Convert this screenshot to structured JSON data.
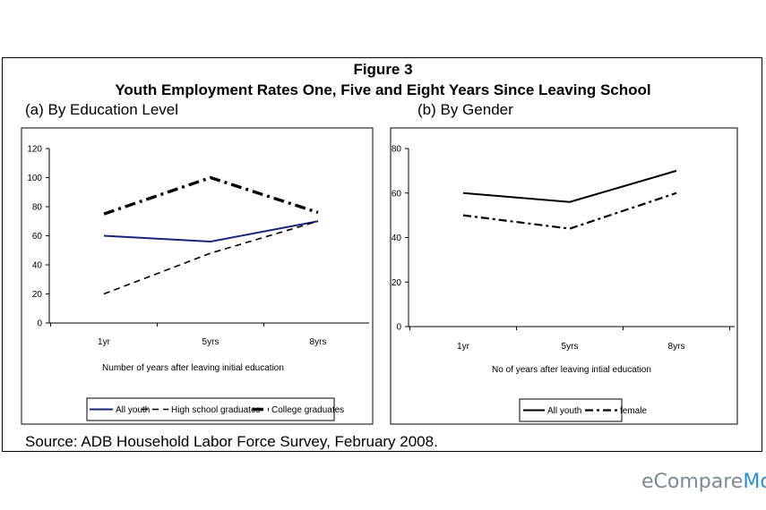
{
  "figure": {
    "title": "Figure 3",
    "subtitle": "Youth Employment Rates One, Five and Eight Years Since Leaving School",
    "source": "Source: ADB Household Labor Force Survey, February 2008."
  },
  "watermark": {
    "part1": "eCompare",
    "part2": "Mo"
  },
  "chart_data": [
    {
      "type": "line",
      "title": "(a) By Education Level",
      "categories": [
        "1yr",
        "5yrs",
        "8yrs"
      ],
      "xlabel": "Number of years after leaving initial education",
      "ylabel": "",
      "ylim": [
        0,
        120
      ],
      "yticks": [
        0,
        20,
        40,
        60,
        80,
        100,
        120
      ],
      "grid": false,
      "legend": "bottom",
      "series": [
        {
          "name": "All youth",
          "values": [
            60,
            56,
            70
          ],
          "color": "#1a237e",
          "dash": "solid"
        },
        {
          "name": "High school graduates",
          "values": [
            20,
            48,
            70
          ],
          "color": "#000000",
          "dash": "dashed"
        },
        {
          "name": "College graduates",
          "values": [
            75,
            100,
            76
          ],
          "color": "#000000",
          "dash": "dashdot-bold"
        }
      ]
    },
    {
      "type": "line",
      "title": "(b) By Gender",
      "categories": [
        "1yr",
        "5yrs",
        "8yrs"
      ],
      "xlabel": "No of years after leaving intial education",
      "ylabel": "",
      "ylim": [
        0,
        80
      ],
      "yticks": [
        0,
        20,
        40,
        60,
        80
      ],
      "grid": false,
      "legend": "bottom",
      "series": [
        {
          "name": "All youth",
          "values": [
            60,
            56,
            70
          ],
          "color": "#000000",
          "dash": "solid"
        },
        {
          "name": "female",
          "values": [
            50,
            44,
            60
          ],
          "color": "#000000",
          "dash": "dashdot"
        }
      ]
    }
  ]
}
